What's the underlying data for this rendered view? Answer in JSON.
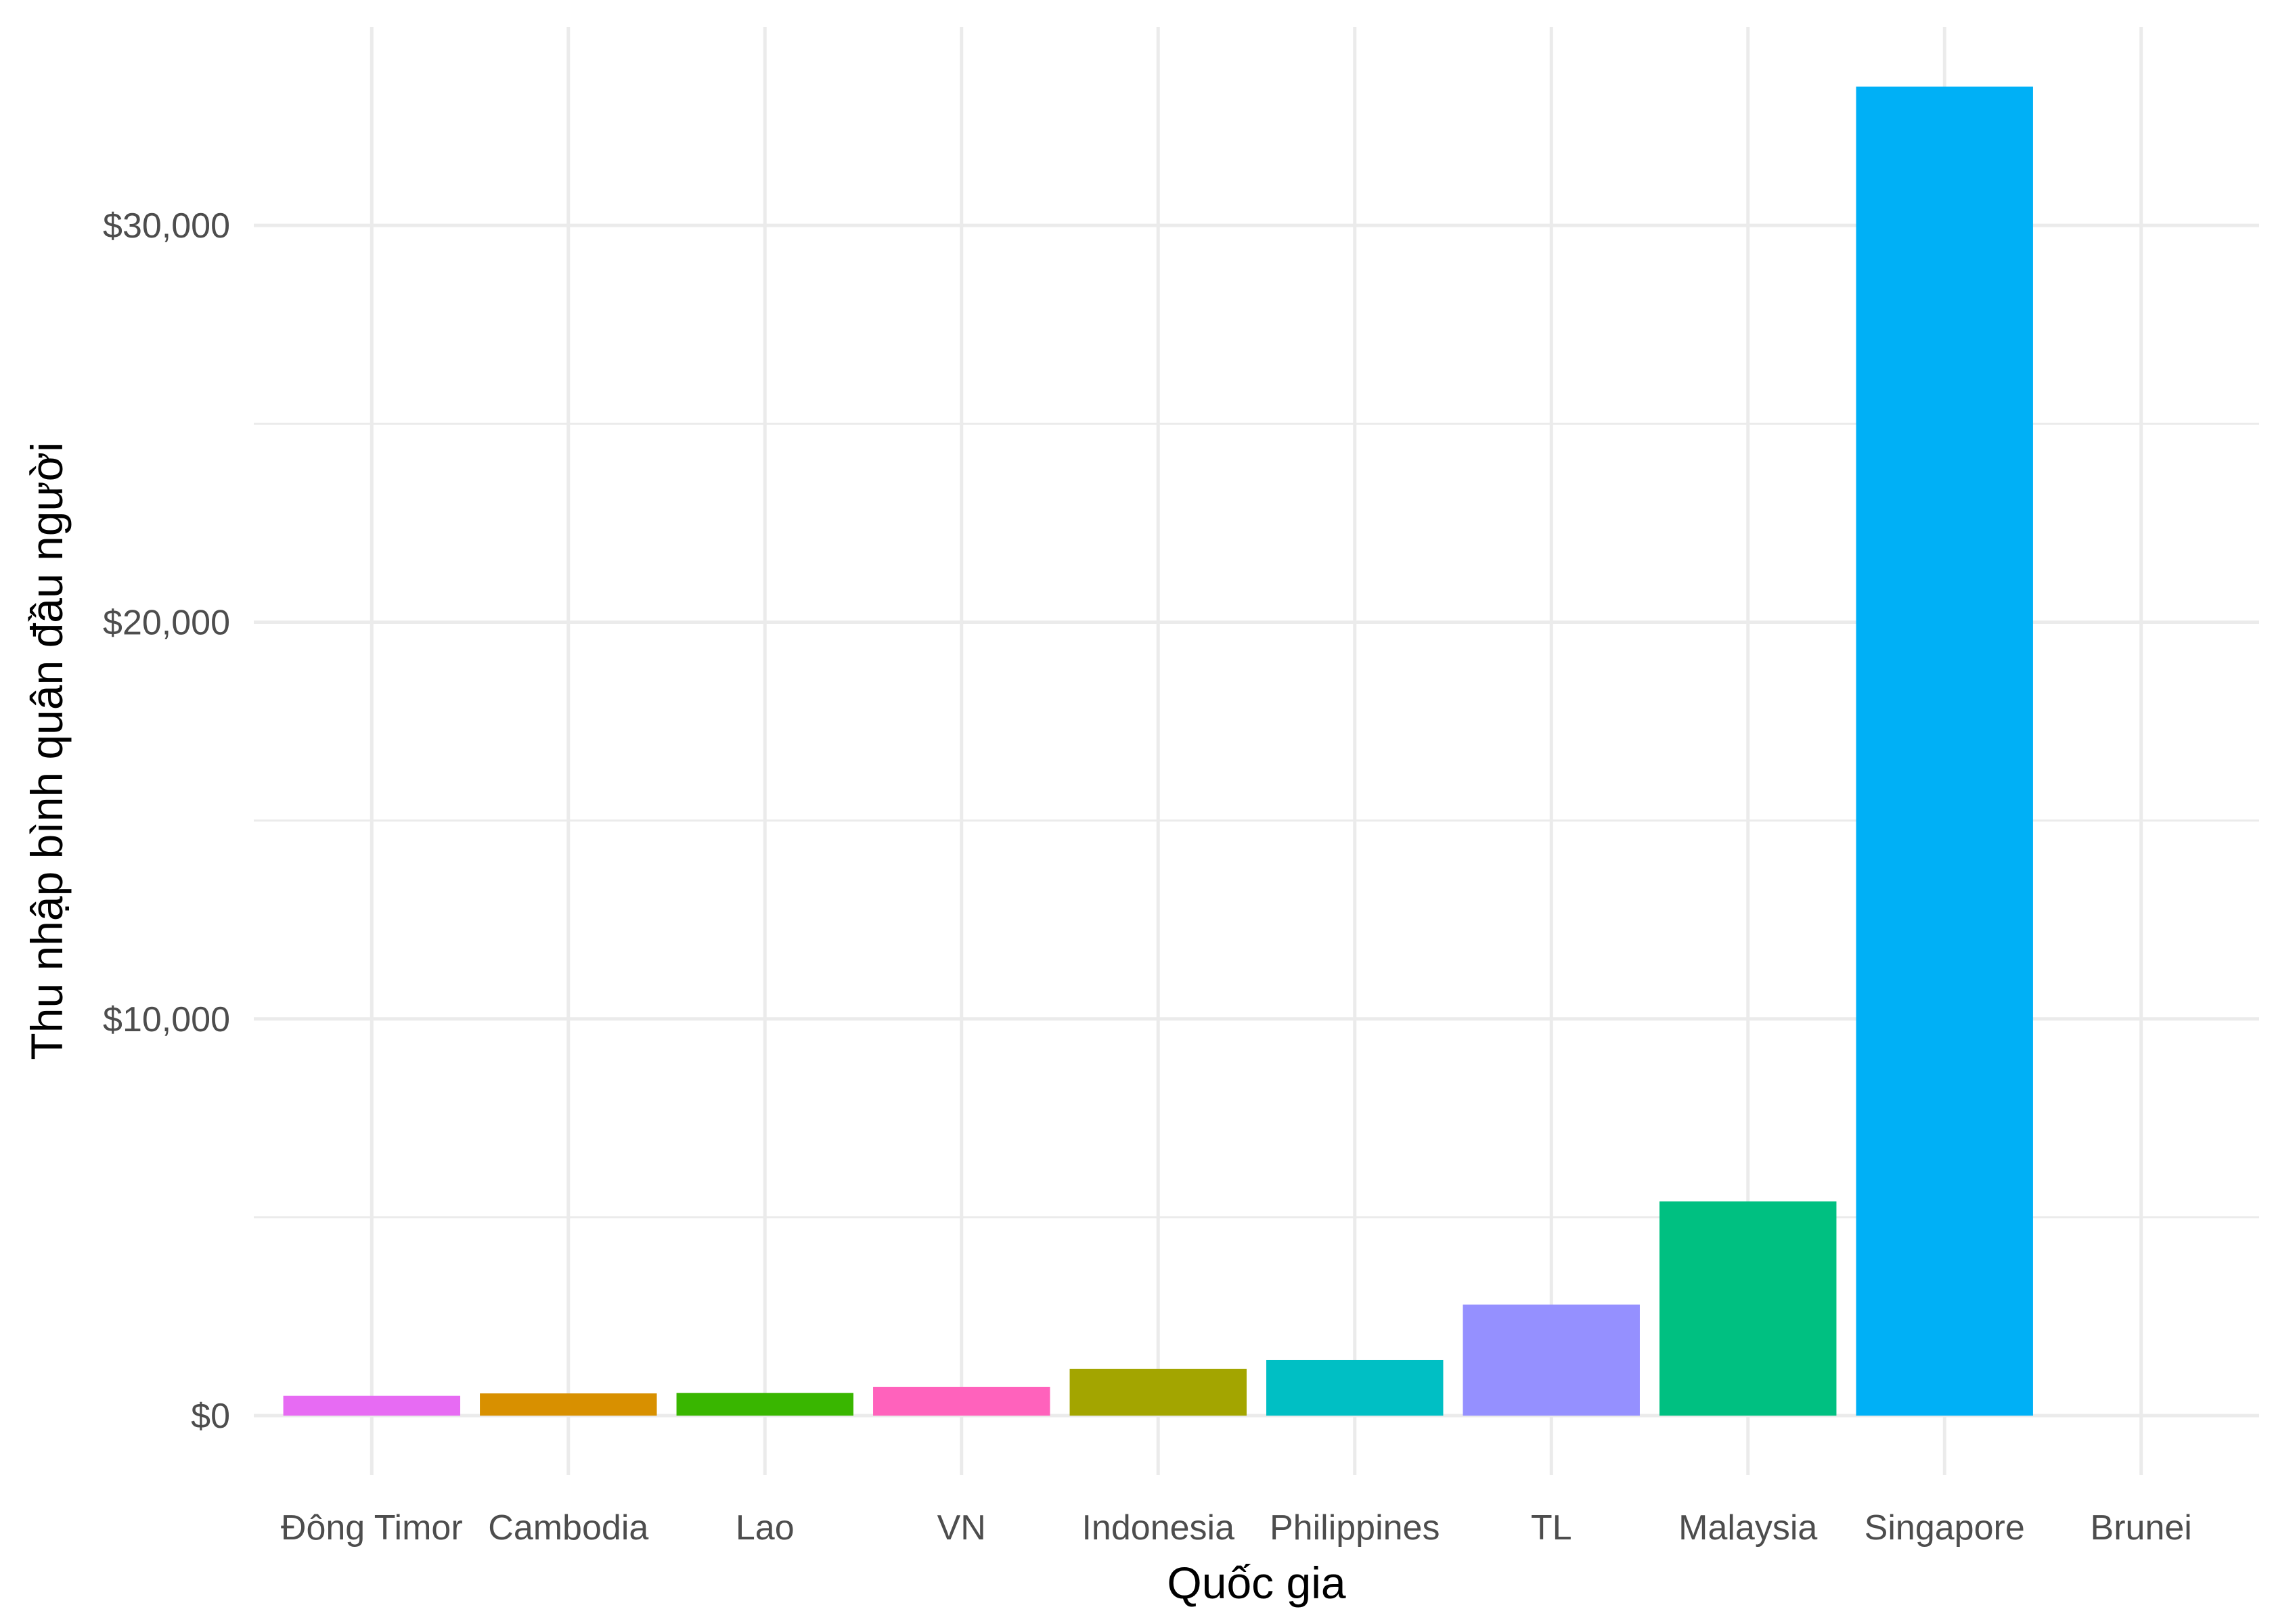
{
  "chart_data": {
    "type": "bar",
    "categories": [
      "Đông Timor",
      "Cambodia",
      "Lao",
      "VN",
      "Indonesia",
      "Philippines",
      "TL",
      "Malaysia",
      "Singapore",
      "Brunei"
    ],
    "values": [
      500,
      560,
      570,
      720,
      1180,
      1400,
      2800,
      5400,
      33500,
      0
    ],
    "colors": [
      "#E76BF3",
      "#D89000",
      "#39B600",
      "#FF62BC",
      "#A3A500",
      "#00BFC4",
      "#9590FF",
      "#00C081",
      "#00B0F6",
      "#F8766D"
    ],
    "title": "",
    "xlabel": "Quốc gia",
    "ylabel": "Thu nhập bình quân đầu người",
    "ylim": [
      -1500,
      35000
    ],
    "yticks": [
      0,
      10000,
      20000,
      30000
    ],
    "ytick_labels": [
      "$0",
      "$10,000",
      "$20,000",
      "$30,000"
    ],
    "grid": true,
    "legend": "none"
  }
}
